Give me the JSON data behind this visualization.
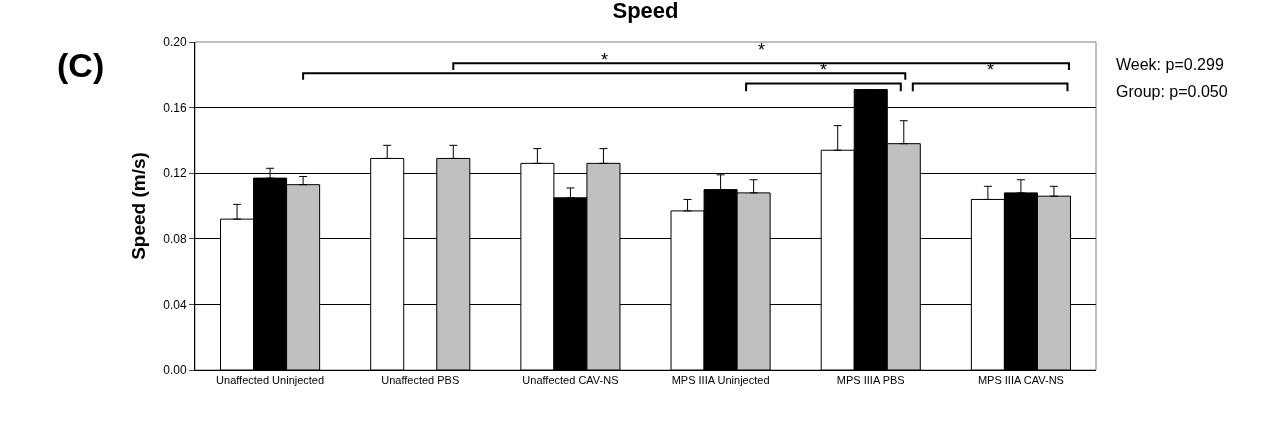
{
  "chart_data": {
    "type": "bar",
    "title": "Speed",
    "ylabel": "Speed (m/s)",
    "categories": [
      "Unaffected Uninjected",
      "Unaffected PBS",
      "Unaffected CAV-NS",
      "MPS IIIA Uninjected",
      "MPS IIIA PBS",
      "MPS IIIA CAV-NS"
    ],
    "series": [
      {
        "color": "#ffffff",
        "values": [
          0.092,
          0.129,
          0.126,
          0.097,
          0.134,
          0.104
        ],
        "errors": [
          [
            0.092,
            0.101
          ],
          [
            0.129,
            0.137
          ],
          [
            0.126,
            0.135
          ],
          [
            0.097,
            0.104
          ],
          [
            0.134,
            0.149
          ],
          [
            0.104,
            0.112
          ]
        ]
      },
      {
        "color": "#000000",
        "values": [
          0.117,
          null,
          0.105,
          0.11,
          0.171,
          0.108
        ],
        "errors": [
          [
            0.117,
            0.123
          ],
          null,
          [
            0.105,
            0.111
          ],
          [
            0.11,
            0.119
          ],
          null,
          [
            0.108,
            0.116
          ]
        ]
      },
      {
        "color": "#c0c0c0",
        "values": [
          0.113,
          0.129,
          0.126,
          0.108,
          0.138,
          0.106
        ],
        "errors": [
          [
            0.113,
            0.118
          ],
          [
            0.129,
            0.137
          ],
          [
            0.126,
            0.135
          ],
          [
            0.108,
            0.116
          ],
          [
            0.138,
            0.152
          ],
          [
            0.106,
            0.112
          ]
        ]
      }
    ],
    "ylim": [
      0,
      0.2
    ],
    "yticks": [
      {
        "value": 0,
        "label": "0.00"
      },
      {
        "value": 0.04,
        "label": "0.04"
      },
      {
        "value": 0.08,
        "label": "0.08"
      },
      {
        "value": 0.12,
        "label": "0.12"
      },
      {
        "value": 0.16,
        "label": "0.16"
      },
      {
        "value": 0.2,
        "label": "0.20"
      }
    ],
    "grid": "y",
    "annotations": [
      "*",
      "*",
      "*",
      "*",
      "Week: p=0.299",
      "Group: p=0.050",
      "(C)"
    ]
  }
}
